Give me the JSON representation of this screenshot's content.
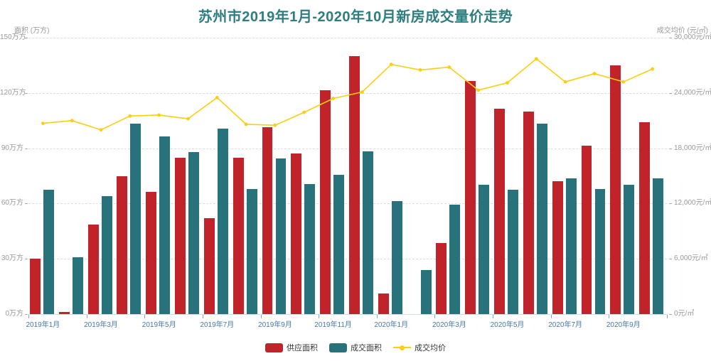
{
  "chart_data": {
    "type": "bar",
    "variant": "grouped-bars-with-line-dual-y-axis",
    "title": "苏州市2019年1月-2020年10月新房成交量价走势",
    "categories": [
      "2019年1月",
      "2019年2月",
      "2019年3月",
      "2019年4月",
      "2019年5月",
      "2019年6月",
      "2019年7月",
      "2019年8月",
      "2019年9月",
      "2019年10月",
      "2019年11月",
      "2019年12月",
      "2020年1月",
      "2020年2月",
      "2020年3月",
      "2020年4月",
      "2020年5月",
      "2020年6月",
      "2020年7月",
      "2020年8月",
      "2020年9月",
      "2020年10月"
    ],
    "series": [
      {
        "name": "供应面积",
        "type": "bar",
        "y_axis": "left",
        "color": "#c1232b",
        "values": [
          30,
          1,
          48.5,
          75,
          66.5,
          85,
          52,
          85,
          101.5,
          87,
          121.5,
          140,
          11,
          0,
          38.5,
          126.5,
          111.5,
          110,
          72,
          91.5,
          135,
          104
        ]
      },
      {
        "name": "成交面积",
        "type": "bar",
        "y_axis": "left",
        "color": "#27727b",
        "values": [
          67.5,
          31,
          64,
          103.5,
          96.5,
          88,
          100.5,
          68,
          84.5,
          70.5,
          75.5,
          88.5,
          61.5,
          24,
          59.5,
          70,
          67.5,
          103.5,
          73.5,
          68,
          70,
          73.5
        ]
      },
      {
        "name": "成交均价",
        "type": "line",
        "y_axis": "right",
        "color": "#fcce10",
        "values": [
          20700,
          21000,
          20000,
          21500,
          21600,
          21200,
          23500,
          20600,
          20500,
          21900,
          23400,
          24100,
          27100,
          26500,
          26800,
          24300,
          25100,
          27700,
          25200,
          26100,
          25200,
          26600
        ]
      }
    ],
    "left_axis": {
      "name": "面积 (万方)",
      "min": 0,
      "max": 150,
      "unit": "万方",
      "tick_labels": [
        "0万方",
        "30万方",
        "60万方",
        "90万方",
        "120万方",
        "150万方"
      ]
    },
    "right_axis": {
      "name": "成交均价 (元/㎡)",
      "min": 0,
      "max": 30000,
      "unit": "元/㎡",
      "tick_labels": [
        "0元/㎡",
        "6,000元/㎡",
        "12,000元/㎡",
        "18,000元/㎡",
        "24,000元/㎡",
        "30,000元/㎡"
      ]
    },
    "x_axis": {
      "tick_labels": [
        "2019年1月",
        "2019年3月",
        "2019年5月",
        "2019年7月",
        "2019年9月",
        "2019年11月",
        "2020年1月",
        "2020年3月",
        "2020年5月",
        "2020年7月",
        "2020年9月"
      ]
    },
    "legend": [
      "供应面积",
      "成交面积",
      "成交均价"
    ],
    "grid": "horizontal-dashed",
    "legend_position": "bottom-center",
    "colors": {
      "title": "#2e7d80",
      "x_label": "#4678a8",
      "y_label": "#999999",
      "gridline": "#dddddd",
      "axis_tick": "#8aa6c6",
      "supply_bar": "#c1232b",
      "deal_bar": "#27727b",
      "price_line": "#fcce10"
    }
  }
}
